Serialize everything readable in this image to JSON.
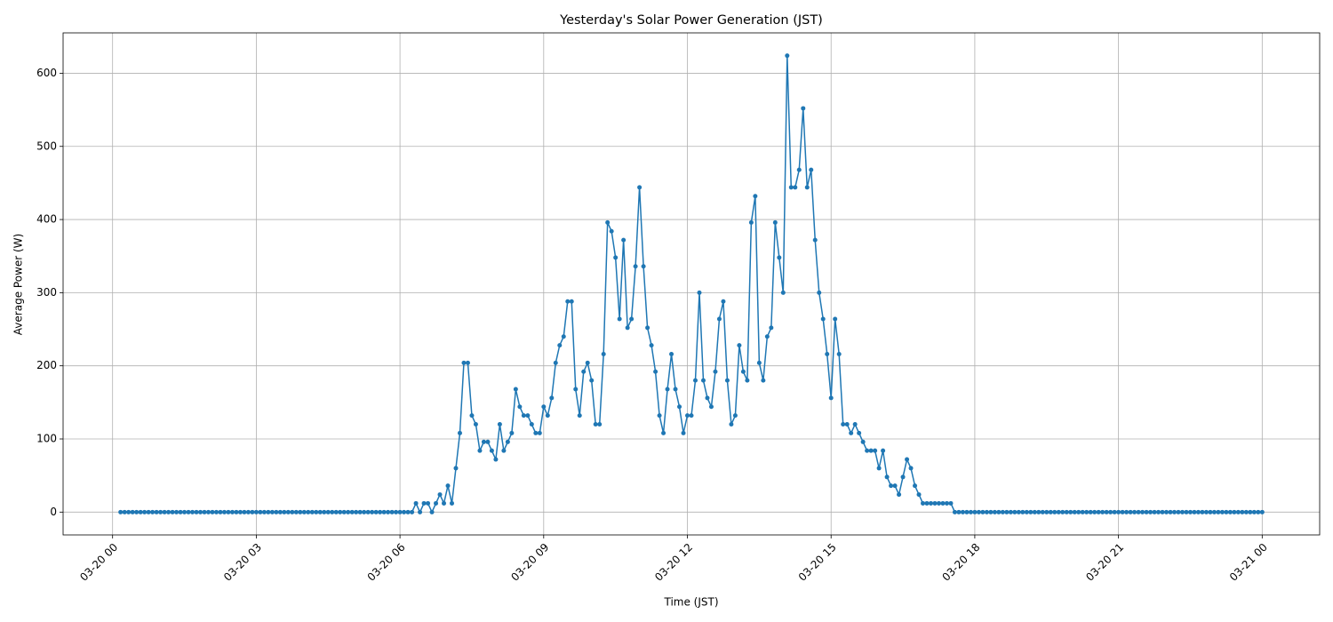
{
  "chart_data": {
    "type": "line",
    "title": "Yesterday's Solar Power Generation (JST)",
    "xlabel": "Time (JST)",
    "ylabel": "Average Power (W)",
    "x": [
      "03-20 00:10",
      "03-20 00:15",
      "03-20 00:20",
      "03-20 00:25",
      "03-20 00:30",
      "03-20 00:35",
      "03-20 00:40",
      "03-20 00:45",
      "03-20 00:50",
      "03-20 00:55",
      "03-20 01:00",
      "03-20 01:05",
      "03-20 01:10",
      "03-20 01:15",
      "03-20 01:20",
      "03-20 01:25",
      "03-20 01:30",
      "03-20 01:35",
      "03-20 01:40",
      "03-20 01:45",
      "03-20 01:50",
      "03-20 01:55",
      "03-20 02:00",
      "03-20 02:05",
      "03-20 02:10",
      "03-20 02:15",
      "03-20 02:20",
      "03-20 02:25",
      "03-20 02:30",
      "03-20 02:35",
      "03-20 02:40",
      "03-20 02:45",
      "03-20 02:50",
      "03-20 02:55",
      "03-20 03:00",
      "03-20 03:05",
      "03-20 03:10",
      "03-20 03:15",
      "03-20 03:20",
      "03-20 03:25",
      "03-20 03:30",
      "03-20 03:35",
      "03-20 03:40",
      "03-20 03:45",
      "03-20 03:50",
      "03-20 03:55",
      "03-20 04:00",
      "03-20 04:05",
      "03-20 04:10",
      "03-20 04:15",
      "03-20 04:20",
      "03-20 04:25",
      "03-20 04:30",
      "03-20 04:35",
      "03-20 04:40",
      "03-20 04:45",
      "03-20 04:50",
      "03-20 04:55",
      "03-20 05:00",
      "03-20 05:05",
      "03-20 05:10",
      "03-20 05:15",
      "03-20 05:20",
      "03-20 05:25",
      "03-20 05:30",
      "03-20 05:35",
      "03-20 05:40",
      "03-20 05:45",
      "03-20 05:50",
      "03-20 05:55",
      "03-20 06:00",
      "03-20 06:05",
      "03-20 06:10",
      "03-20 06:15",
      "03-20 06:20",
      "03-20 06:25",
      "03-20 06:30",
      "03-20 06:35",
      "03-20 06:40",
      "03-20 06:45",
      "03-20 06:50",
      "03-20 06:55",
      "03-20 07:00",
      "03-20 07:05",
      "03-20 07:10",
      "03-20 07:15",
      "03-20 07:20",
      "03-20 07:25",
      "03-20 07:30",
      "03-20 07:35",
      "03-20 07:40",
      "03-20 07:45",
      "03-20 07:50",
      "03-20 07:55",
      "03-20 08:00",
      "03-20 08:05",
      "03-20 08:10",
      "03-20 08:15",
      "03-20 08:20",
      "03-20 08:25",
      "03-20 08:30",
      "03-20 08:35",
      "03-20 08:40",
      "03-20 08:45",
      "03-20 08:50",
      "03-20 08:55",
      "03-20 09:00",
      "03-20 09:05",
      "03-20 09:10",
      "03-20 09:15",
      "03-20 09:20",
      "03-20 09:25",
      "03-20 09:30",
      "03-20 09:35",
      "03-20 09:40",
      "03-20 09:45",
      "03-20 09:50",
      "03-20 09:55",
      "03-20 10:00",
      "03-20 10:05",
      "03-20 10:10",
      "03-20 10:15",
      "03-20 10:20",
      "03-20 10:25",
      "03-20 10:30",
      "03-20 10:35",
      "03-20 10:40",
      "03-20 10:45",
      "03-20 10:50",
      "03-20 10:55",
      "03-20 11:00",
      "03-20 11:05",
      "03-20 11:10",
      "03-20 11:15",
      "03-20 11:20",
      "03-20 11:25",
      "03-20 11:30",
      "03-20 11:35",
      "03-20 11:40",
      "03-20 11:45",
      "03-20 11:50",
      "03-20 11:55",
      "03-20 12:00",
      "03-20 12:05",
      "03-20 12:10",
      "03-20 12:15",
      "03-20 12:20",
      "03-20 12:25",
      "03-20 12:30",
      "03-20 12:35",
      "03-20 12:40",
      "03-20 12:45",
      "03-20 12:50",
      "03-20 12:55",
      "03-20 13:00",
      "03-20 13:05",
      "03-20 13:10",
      "03-20 13:15",
      "03-20 13:20",
      "03-20 13:25",
      "03-20 13:30",
      "03-20 13:35",
      "03-20 13:40",
      "03-20 13:45",
      "03-20 13:50",
      "03-20 13:55",
      "03-20 14:00",
      "03-20 14:05",
      "03-20 14:10",
      "03-20 14:15",
      "03-20 14:20",
      "03-20 14:25",
      "03-20 14:30",
      "03-20 14:35",
      "03-20 14:40",
      "03-20 14:45",
      "03-20 14:50",
      "03-20 14:55",
      "03-20 15:00",
      "03-20 15:05",
      "03-20 15:10",
      "03-20 15:15",
      "03-20 15:20",
      "03-20 15:25",
      "03-20 15:30",
      "03-20 15:35",
      "03-20 15:40",
      "03-20 15:45",
      "03-20 15:50",
      "03-20 15:55",
      "03-20 16:00",
      "03-20 16:05",
      "03-20 16:10",
      "03-20 16:15",
      "03-20 16:20",
      "03-20 16:25",
      "03-20 16:30",
      "03-20 16:35",
      "03-20 16:40",
      "03-20 16:45",
      "03-20 16:50",
      "03-20 16:55",
      "03-20 17:00",
      "03-20 17:05",
      "03-20 17:10",
      "03-20 17:15",
      "03-20 17:20",
      "03-20 17:25",
      "03-20 17:30",
      "03-20 17:35",
      "03-20 17:40",
      "03-20 17:45",
      "03-20 17:50",
      "03-20 17:55",
      "03-20 18:00",
      "03-20 18:05",
      "03-20 18:10",
      "03-20 18:15",
      "03-20 18:20",
      "03-20 18:25",
      "03-20 18:30",
      "03-20 18:35",
      "03-20 18:40",
      "03-20 18:45",
      "03-20 18:50",
      "03-20 18:55",
      "03-20 19:00",
      "03-20 19:05",
      "03-20 19:10",
      "03-20 19:15",
      "03-20 19:20",
      "03-20 19:25",
      "03-20 19:30",
      "03-20 19:35",
      "03-20 19:40",
      "03-20 19:45",
      "03-20 19:50",
      "03-20 19:55",
      "03-20 20:00",
      "03-20 20:05",
      "03-20 20:10",
      "03-20 20:15",
      "03-20 20:20",
      "03-20 20:25",
      "03-20 20:30",
      "03-20 20:35",
      "03-20 20:40",
      "03-20 20:45",
      "03-20 20:50",
      "03-20 20:55",
      "03-20 21:00",
      "03-20 21:05",
      "03-20 21:10",
      "03-20 21:15",
      "03-20 21:20",
      "03-20 21:25",
      "03-20 21:30",
      "03-20 21:35",
      "03-20 21:40",
      "03-20 21:45",
      "03-20 21:50",
      "03-20 21:55",
      "03-20 22:00",
      "03-20 22:05",
      "03-20 22:10",
      "03-20 22:15",
      "03-20 22:20",
      "03-20 22:25",
      "03-20 22:30",
      "03-20 22:35",
      "03-20 22:40",
      "03-20 22:45",
      "03-20 22:50",
      "03-20 22:55",
      "03-20 23:00",
      "03-20 23:05",
      "03-20 23:10",
      "03-20 23:15",
      "03-20 23:20",
      "03-20 23:25",
      "03-20 23:30",
      "03-20 23:35",
      "03-20 23:40",
      "03-20 23:45",
      "03-20 23:50",
      "03-20 23:55",
      "03-21 00:00"
    ],
    "series": [
      {
        "color": "#1f77b4",
        "values": [
          0,
          0,
          0,
          0,
          0,
          0,
          0,
          0,
          0,
          0,
          0,
          0,
          0,
          0,
          0,
          0,
          0,
          0,
          0,
          0,
          0,
          0,
          0,
          0,
          0,
          0,
          0,
          0,
          0,
          0,
          0,
          0,
          0,
          0,
          0,
          0,
          0,
          0,
          0,
          0,
          0,
          0,
          0,
          0,
          0,
          0,
          0,
          0,
          0,
          0,
          0,
          0,
          0,
          0,
          0,
          0,
          0,
          0,
          0,
          0,
          0,
          0,
          0,
          0,
          0,
          0,
          0,
          0,
          0,
          0,
          0,
          0,
          0,
          0,
          12,
          0,
          12,
          12,
          0,
          12,
          24,
          12,
          36,
          12,
          60,
          108,
          204,
          204,
          132,
          120,
          84,
          96,
          96,
          84,
          72,
          120,
          84,
          96,
          108,
          168,
          144,
          132,
          132,
          120,
          108,
          108,
          144,
          132,
          156,
          204,
          228,
          240,
          288,
          288,
          168,
          132,
          192,
          204,
          180,
          120,
          120,
          216,
          396,
          384,
          348,
          264,
          372,
          252,
          264,
          336,
          444,
          336,
          252,
          228,
          192,
          132,
          108,
          168,
          216,
          168,
          144,
          108,
          132,
          132,
          180,
          300,
          180,
          156,
          144,
          192,
          264,
          288,
          180,
          120,
          132,
          228,
          192,
          180,
          396,
          432,
          204,
          180,
          240,
          252,
          396,
          348,
          300,
          624,
          444,
          444,
          468,
          552,
          444,
          468,
          372,
          300,
          264,
          216,
          156,
          264,
          216,
          120,
          120,
          108,
          120,
          108,
          96,
          84,
          84,
          84,
          60,
          84,
          48,
          36,
          36,
          24,
          48,
          72,
          60,
          36,
          24,
          12,
          12,
          12,
          12,
          12,
          12,
          12,
          12,
          0,
          0,
          0,
          0,
          0,
          0,
          0,
          0,
          0,
          0,
          0,
          0,
          0,
          0,
          0,
          0,
          0,
          0,
          0,
          0,
          0,
          0,
          0,
          0,
          0,
          0,
          0,
          0,
          0,
          0,
          0,
          0,
          0,
          0,
          0,
          0,
          0,
          0,
          0,
          0,
          0,
          0,
          0,
          0,
          0,
          0,
          0,
          0,
          0,
          0,
          0,
          0,
          0,
          0,
          0,
          0,
          0,
          0,
          0,
          0,
          0,
          0,
          0,
          0,
          0,
          0,
          0,
          0,
          0,
          0,
          0,
          0,
          0,
          0,
          0,
          0,
          0,
          0
        ]
      }
    ],
    "xlim": [
      "03-19 22:58",
      "03-21 01:12"
    ],
    "ylim": [
      -31.2,
      655.2
    ],
    "xticks": [
      "03-20 00",
      "03-20 03",
      "03-20 06",
      "03-20 09",
      "03-20 12",
      "03-20 15",
      "03-20 18",
      "03-20 21",
      "03-21 00"
    ],
    "yticks": [
      0,
      100,
      200,
      300,
      400,
      500,
      600
    ],
    "grid": true
  }
}
